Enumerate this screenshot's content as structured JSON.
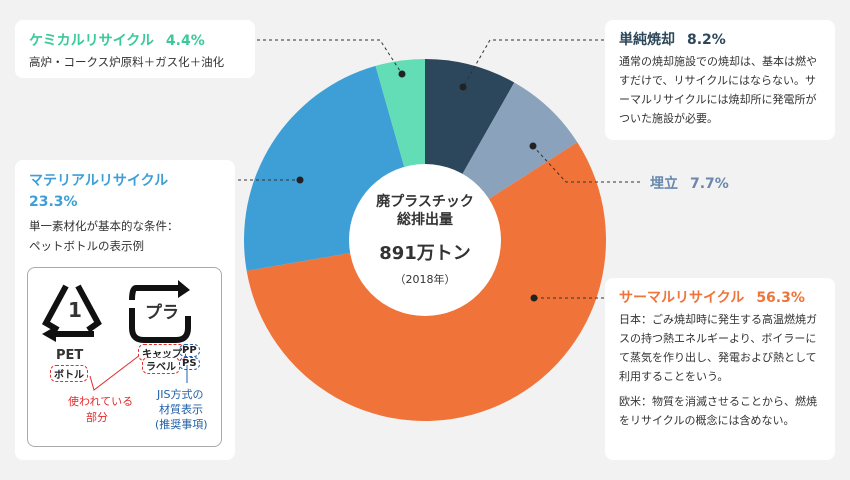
{
  "chart_data": {
    "type": "pie",
    "title": "廃プラスチック総排出量",
    "total": "891万トン",
    "year": "（2018年）",
    "slices": [
      {
        "name": "単純焼却",
        "value": 8.2,
        "color": "#2c475b"
      },
      {
        "name": "埋立",
        "value": 7.7,
        "color": "#8aa2bb"
      },
      {
        "name": "サーマルリサイクル",
        "value": 56.3,
        "color": "#f07339"
      },
      {
        "name": "マテリアルリサイクル",
        "value": 23.3,
        "color": "#3d9fd6"
      },
      {
        "name": "ケミカルリサイクル",
        "value": 4.4,
        "color": "#62ddb5"
      }
    ]
  },
  "center": {
    "title1": "廃プラスチック",
    "title2": "総排出量",
    "total": "891万トン",
    "year": "（2018年）"
  },
  "chemical": {
    "title": "ケミカルリサイクル",
    "pct": "4.4%",
    "desc": "高炉・コークス炉原料＋ガス化＋油化"
  },
  "material": {
    "title": "マテリアルリサイクル",
    "pct": "23.3%",
    "desc1": "単一素材化が基本的な条件：",
    "desc2": "ペットボトルの表示例"
  },
  "symbols": {
    "pet_num": "1",
    "pet": "PET",
    "bottle": "ボトル",
    "pla": "プラ",
    "cap": "キャップ",
    "label": "ラベル",
    "pp": "PP",
    "ps": "PS",
    "used1": "使われている",
    "used2": "部分",
    "jis1": "JIS方式の",
    "jis2": "材質表示",
    "jis3": "(推奨事項)"
  },
  "incineration": {
    "title": "単純焼却",
    "pct": "8.2%",
    "desc": "通常の焼却施設での焼却は、基本は燃やすだけで、リサイクルにはならない。サーマルリサイクルには焼却所に発電所がついた施設が必要。"
  },
  "landfill": {
    "title": "埋立",
    "pct": "7.7%"
  },
  "thermal": {
    "title": "サーマルリサイクル",
    "pct": "56.3%",
    "desc1": "日本：ごみ焼却時に発生する高温燃焼ガスの持つ熱エネルギーより、ボイラーにて蒸気を作り出し、発電および熱として利用することをいう。",
    "desc2": "欧米：物質を消滅させることから、燃焼をリサイクルの概念には含めない。"
  }
}
